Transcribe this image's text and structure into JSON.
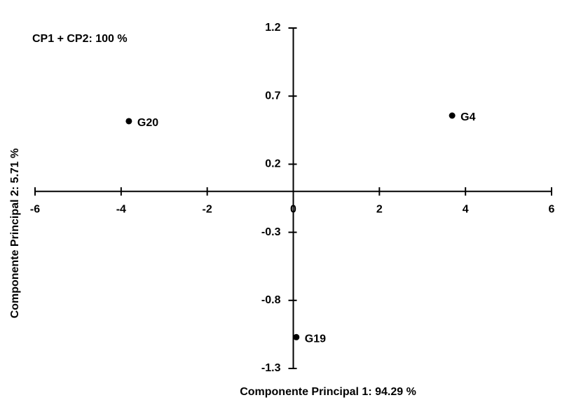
{
  "chart_data": {
    "type": "scatter",
    "annotation": "CP1 + CP2: 100 %",
    "x_label": "Componente Principal 1: 94.29 %",
    "y_label": "Componente Principal 2: 5.71 %",
    "labels": [
      "G20",
      "G4",
      "G19"
    ],
    "x": [
      -3.82,
      3.69,
      0.07
    ],
    "values": [
      0.516,
      0.557,
      -1.07
    ],
    "color": "#000000",
    "xlim": [
      -6,
      6
    ],
    "xticks": [
      -6,
      -4,
      -2,
      0,
      2,
      4,
      6
    ],
    "ylim": [
      -1.3,
      1.2
    ],
    "yticks": [
      -1.3,
      -0.8,
      -0.3,
      0.2,
      0.7,
      1.2
    ]
  }
}
